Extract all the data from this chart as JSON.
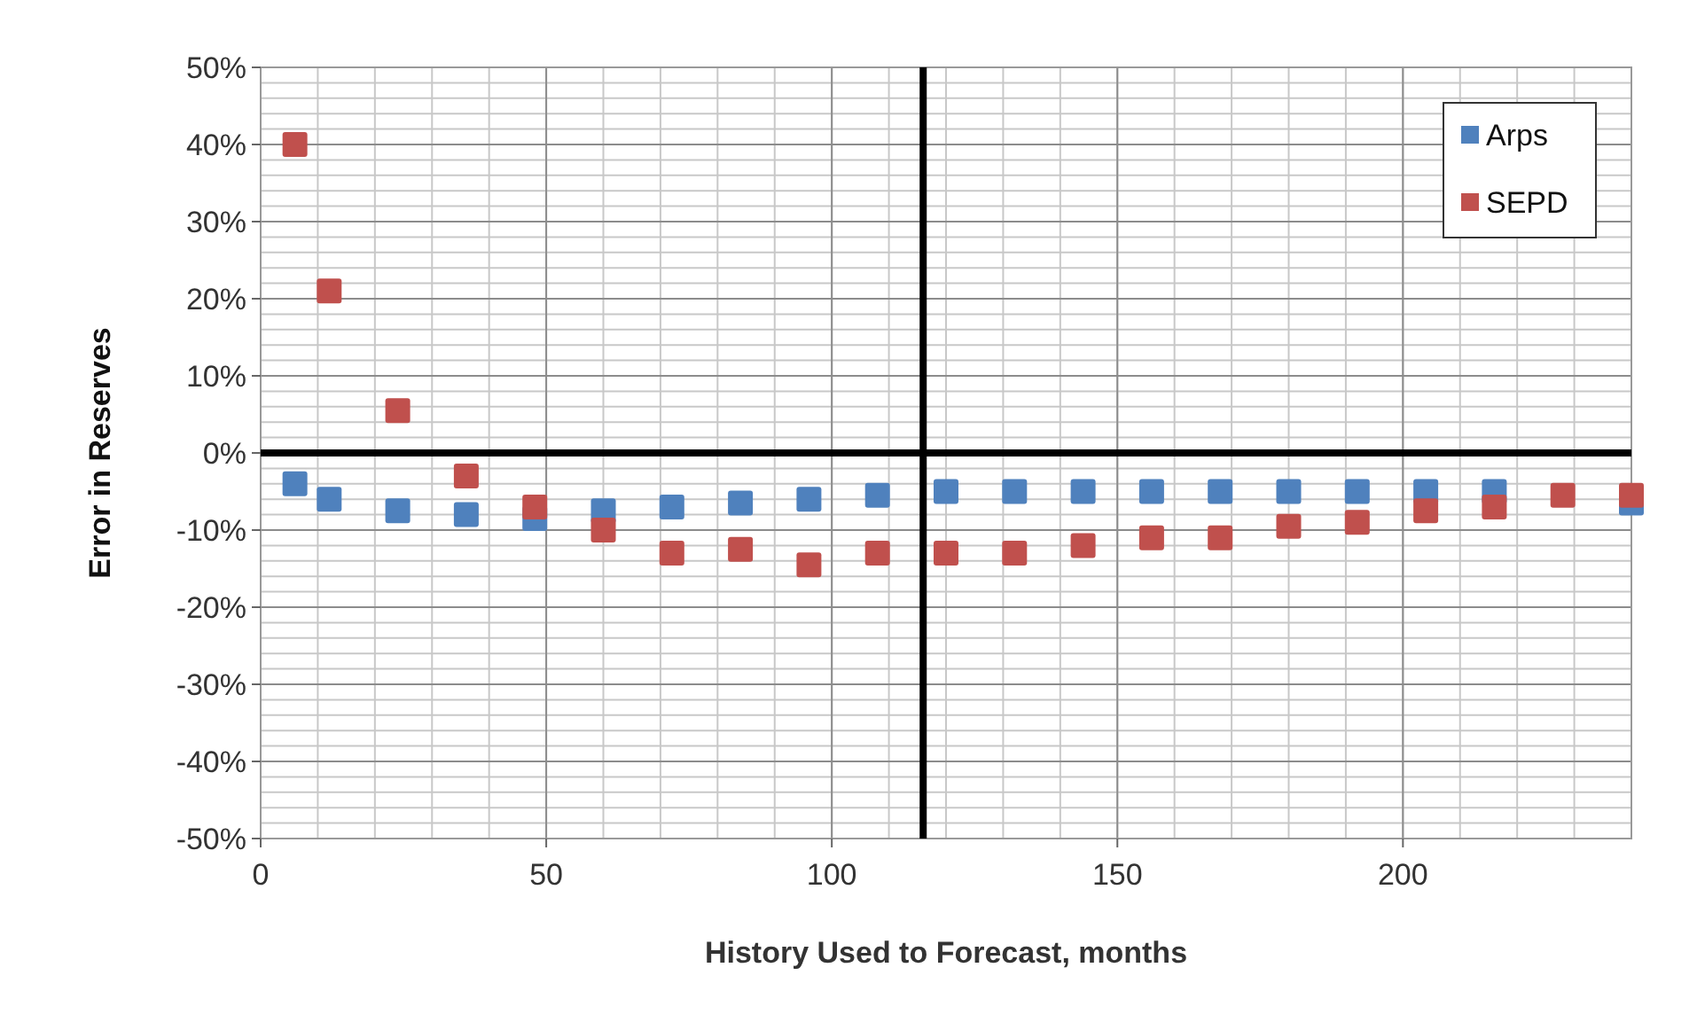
{
  "chart_data": {
    "type": "scatter",
    "xlabel": "History Used to Forecast, months",
    "ylabel": "Error in Reserves",
    "x": [
      6,
      12,
      24,
      36,
      48,
      60,
      72,
      84,
      96,
      108,
      120,
      132,
      144,
      156,
      168,
      180,
      192,
      204,
      216,
      228,
      240
    ],
    "series": [
      {
        "name": "Arps",
        "color": "#4f81bd",
        "values": [
          -4,
          -6,
          -7.5,
          -8,
          -8.5,
          -7.5,
          -7,
          -6.5,
          -6,
          -5.5,
          -5,
          -5,
          -5,
          -5,
          -5,
          -5,
          -5,
          -5,
          -5,
          null,
          -6.5
        ]
      },
      {
        "name": "SEPD",
        "color": "#c0504d",
        "values": [
          40,
          21,
          5.5,
          -3,
          -7,
          -10,
          -13,
          -12.5,
          -14.5,
          -13,
          -13,
          -13,
          -12,
          -11,
          -11,
          -9.5,
          -9,
          -7.5,
          -7,
          -5.5,
          -5.5
        ]
      }
    ],
    "xlim": [
      0,
      240
    ],
    "xticks": [
      0,
      50,
      100,
      150,
      200
    ],
    "ylim": [
      -50,
      50
    ],
    "yticks": [
      {
        "value": -50,
        "label": "-50%"
      },
      {
        "value": -40,
        "label": "-40%"
      },
      {
        "value": -30,
        "label": "-30%"
      },
      {
        "value": -20,
        "label": "-20%"
      },
      {
        "value": -10,
        "label": "-10%"
      },
      {
        "value": 0,
        "label": "0%"
      },
      {
        "value": 10,
        "label": "10%"
      },
      {
        "value": 20,
        "label": "20%"
      },
      {
        "value": 30,
        "label": "30%"
      },
      {
        "value": 40,
        "label": "40%"
      },
      {
        "value": 50,
        "label": "50%"
      }
    ],
    "grid": true,
    "legend": "top right",
    "marker": "square",
    "ref_lines": [
      {
        "axis": "y",
        "value": 0,
        "color": "#000000"
      },
      {
        "axis": "x",
        "value": 116,
        "color": "#000000"
      }
    ]
  }
}
